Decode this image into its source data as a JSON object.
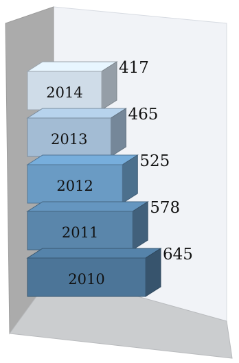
{
  "chart_data": {
    "type": "bar",
    "orientation": "horizontal",
    "style": "3d-stacked-blocks",
    "title": "",
    "xlabel": "",
    "ylabel": "",
    "categories": [
      "2010",
      "2011",
      "2012",
      "2013",
      "2014"
    ],
    "values": [
      645,
      578,
      525,
      465,
      417
    ],
    "colors": [
      "#4c7598",
      "#5a86ab",
      "#6a9bc4",
      "#a3bcd4",
      "#cfdce8"
    ],
    "grid": false,
    "legend": "none"
  }
}
